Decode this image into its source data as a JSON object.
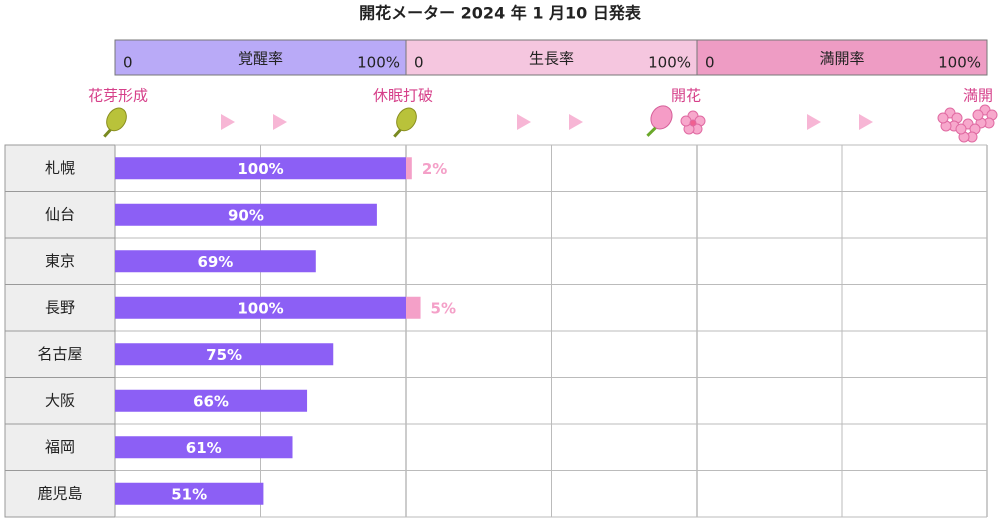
{
  "chart_data": {
    "type": "bar",
    "title": "開花メーター 2024 年 1 月10 日発表",
    "phases": [
      {
        "name": "覚醒率",
        "color": "#b9aaf7",
        "xlim": [
          0,
          100
        ],
        "xticks": [
          0,
          {
            "value": 100,
            "label": "100%"
          }
        ]
      },
      {
        "name": "生長率",
        "color": "#f5c6df",
        "xlim": [
          0,
          100
        ],
        "xticks": [
          0,
          {
            "value": 100,
            "label": "100%"
          }
        ]
      },
      {
        "name": "満開率",
        "color": "#ee9cc4",
        "xlim": [
          0,
          100
        ],
        "xticks": [
          0,
          {
            "value": 100,
            "label": "100%"
          }
        ]
      }
    ],
    "milestones": [
      "花芽形成",
      "休眠打破",
      "開花",
      "満開"
    ],
    "categories": [
      "札幌",
      "仙台",
      "東京",
      "長野",
      "名古屋",
      "大阪",
      "福岡",
      "鹿児島"
    ],
    "series": [
      {
        "name": "覚醒率",
        "color": "#8c5ff5",
        "values": [
          100,
          90,
          69,
          100,
          75,
          66,
          61,
          51
        ],
        "value_labels": [
          "100%",
          "90%",
          "69%",
          "100%",
          "75%",
          "66%",
          "61%",
          "51%"
        ]
      },
      {
        "name": "生長率",
        "color": "#f4a0c8",
        "values": [
          2,
          null,
          null,
          5,
          null,
          null,
          null,
          null
        ],
        "value_labels": [
          "2%",
          null,
          null,
          "5%",
          null,
          null,
          null,
          null
        ]
      }
    ]
  }
}
